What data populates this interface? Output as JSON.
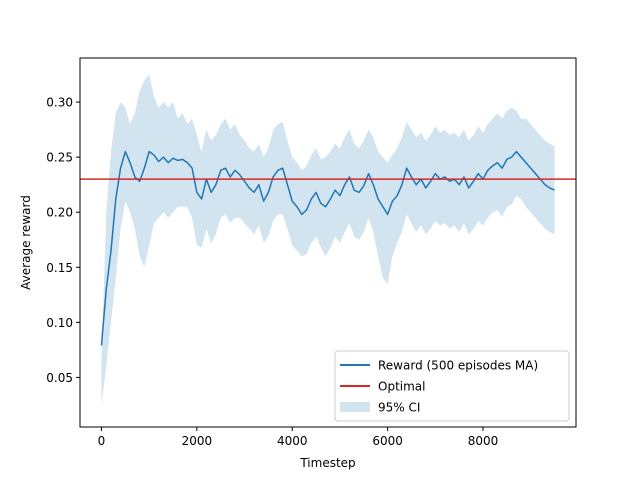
{
  "chart_data": {
    "type": "line",
    "xlabel": "Timestep",
    "ylabel": "Average reward",
    "xlim": [
      -450,
      9950
    ],
    "ylim": [
      0.005,
      0.34
    ],
    "xticks": [
      0,
      2000,
      4000,
      6000,
      8000
    ],
    "xtick_labels": [
      "0",
      "2000",
      "4000",
      "6000",
      "8000"
    ],
    "yticks": [
      0.05,
      0.1,
      0.15,
      0.2,
      0.25,
      0.3
    ],
    "ytick_labels": [
      "0.05",
      "0.10",
      "0.15",
      "0.20",
      "0.25",
      "0.30"
    ],
    "grid": false,
    "legend_position": "lower-right",
    "colors": {
      "reward": "#1f77b4",
      "optimal": "#d62728",
      "ci": "#1f77b4"
    },
    "series": [
      {
        "name": "Reward (500 episodes MA)",
        "x": [
          0,
          100,
          200,
          300,
          400,
          500,
          600,
          700,
          800,
          900,
          1000,
          1100,
          1200,
          1300,
          1400,
          1500,
          1600,
          1700,
          1800,
          1900,
          2000,
          2100,
          2200,
          2300,
          2400,
          2500,
          2600,
          2700,
          2800,
          2900,
          3000,
          3100,
          3200,
          3300,
          3400,
          3500,
          3600,
          3700,
          3800,
          3900,
          4000,
          4100,
          4200,
          4300,
          4400,
          4500,
          4600,
          4700,
          4800,
          4900,
          5000,
          5100,
          5200,
          5300,
          5400,
          5500,
          5600,
          5700,
          5800,
          5900,
          6000,
          6100,
          6200,
          6300,
          6400,
          6500,
          6600,
          6700,
          6800,
          6900,
          7000,
          7100,
          7200,
          7300,
          7400,
          7500,
          7600,
          7700,
          7800,
          7900,
          8000,
          8100,
          8200,
          8300,
          8400,
          8500,
          8600,
          8700,
          8800,
          8900,
          9000,
          9100,
          9200,
          9300,
          9400,
          9500
        ],
        "y": [
          0.079,
          0.13,
          0.165,
          0.212,
          0.24,
          0.255,
          0.245,
          0.232,
          0.228,
          0.24,
          0.255,
          0.252,
          0.246,
          0.25,
          0.245,
          0.249,
          0.247,
          0.248,
          0.245,
          0.24,
          0.218,
          0.212,
          0.23,
          0.218,
          0.225,
          0.238,
          0.24,
          0.232,
          0.238,
          0.234,
          0.228,
          0.222,
          0.218,
          0.225,
          0.21,
          0.218,
          0.232,
          0.238,
          0.24,
          0.225,
          0.21,
          0.205,
          0.198,
          0.202,
          0.212,
          0.218,
          0.208,
          0.205,
          0.212,
          0.22,
          0.215,
          0.225,
          0.232,
          0.22,
          0.218,
          0.224,
          0.235,
          0.225,
          0.212,
          0.205,
          0.198,
          0.21,
          0.215,
          0.225,
          0.24,
          0.232,
          0.225,
          0.23,
          0.222,
          0.228,
          0.235,
          0.23,
          0.232,
          0.228,
          0.23,
          0.225,
          0.232,
          0.222,
          0.228,
          0.235,
          0.23,
          0.238,
          0.242,
          0.245,
          0.24,
          0.248,
          0.25,
          0.255,
          0.25,
          0.245,
          0.24,
          0.235,
          0.23,
          0.225,
          0.222,
          0.22
        ]
      },
      {
        "name": "Optimal",
        "y_value": 0.23
      },
      {
        "name": "95% CI",
        "upper": [
          0.065,
          0.2,
          0.255,
          0.29,
          0.3,
          0.295,
          0.28,
          0.29,
          0.31,
          0.32,
          0.325,
          0.305,
          0.295,
          0.3,
          0.295,
          0.3,
          0.285,
          0.29,
          0.28,
          0.285,
          0.27,
          0.255,
          0.275,
          0.265,
          0.27,
          0.28,
          0.285,
          0.275,
          0.28,
          0.27,
          0.265,
          0.258,
          0.255,
          0.262,
          0.25,
          0.258,
          0.275,
          0.28,
          0.282,
          0.265,
          0.25,
          0.245,
          0.238,
          0.242,
          0.252,
          0.258,
          0.248,
          0.25,
          0.255,
          0.262,
          0.258,
          0.268,
          0.275,
          0.262,
          0.258,
          0.265,
          0.275,
          0.268,
          0.255,
          0.25,
          0.245,
          0.252,
          0.258,
          0.268,
          0.282,
          0.275,
          0.268,
          0.272,
          0.265,
          0.27,
          0.278,
          0.272,
          0.275,
          0.27,
          0.272,
          0.268,
          0.275,
          0.265,
          0.27,
          0.278,
          0.272,
          0.28,
          0.285,
          0.29,
          0.285,
          0.292,
          0.295,
          0.292,
          0.285,
          0.285,
          0.28,
          0.275,
          0.27,
          0.265,
          0.262,
          0.26
        ],
        "lower": [
          0.025,
          0.06,
          0.1,
          0.14,
          0.185,
          0.21,
          0.2,
          0.185,
          0.16,
          0.15,
          0.17,
          0.19,
          0.195,
          0.2,
          0.195,
          0.2,
          0.205,
          0.205,
          0.205,
          0.195,
          0.17,
          0.168,
          0.185,
          0.172,
          0.18,
          0.195,
          0.198,
          0.19,
          0.195,
          0.195,
          0.19,
          0.185,
          0.18,
          0.188,
          0.172,
          0.178,
          0.192,
          0.198,
          0.198,
          0.185,
          0.17,
          0.165,
          0.16,
          0.162,
          0.172,
          0.178,
          0.168,
          0.16,
          0.168,
          0.178,
          0.172,
          0.182,
          0.19,
          0.178,
          0.175,
          0.182,
          0.195,
          0.182,
          0.16,
          0.14,
          0.135,
          0.16,
          0.172,
          0.182,
          0.198,
          0.19,
          0.182,
          0.188,
          0.18,
          0.185,
          0.192,
          0.188,
          0.19,
          0.185,
          0.188,
          0.182,
          0.19,
          0.18,
          0.185,
          0.192,
          0.188,
          0.195,
          0.2,
          0.202,
          0.196,
          0.205,
          0.207,
          0.215,
          0.212,
          0.205,
          0.2,
          0.195,
          0.19,
          0.185,
          0.182,
          0.18
        ]
      }
    ]
  }
}
